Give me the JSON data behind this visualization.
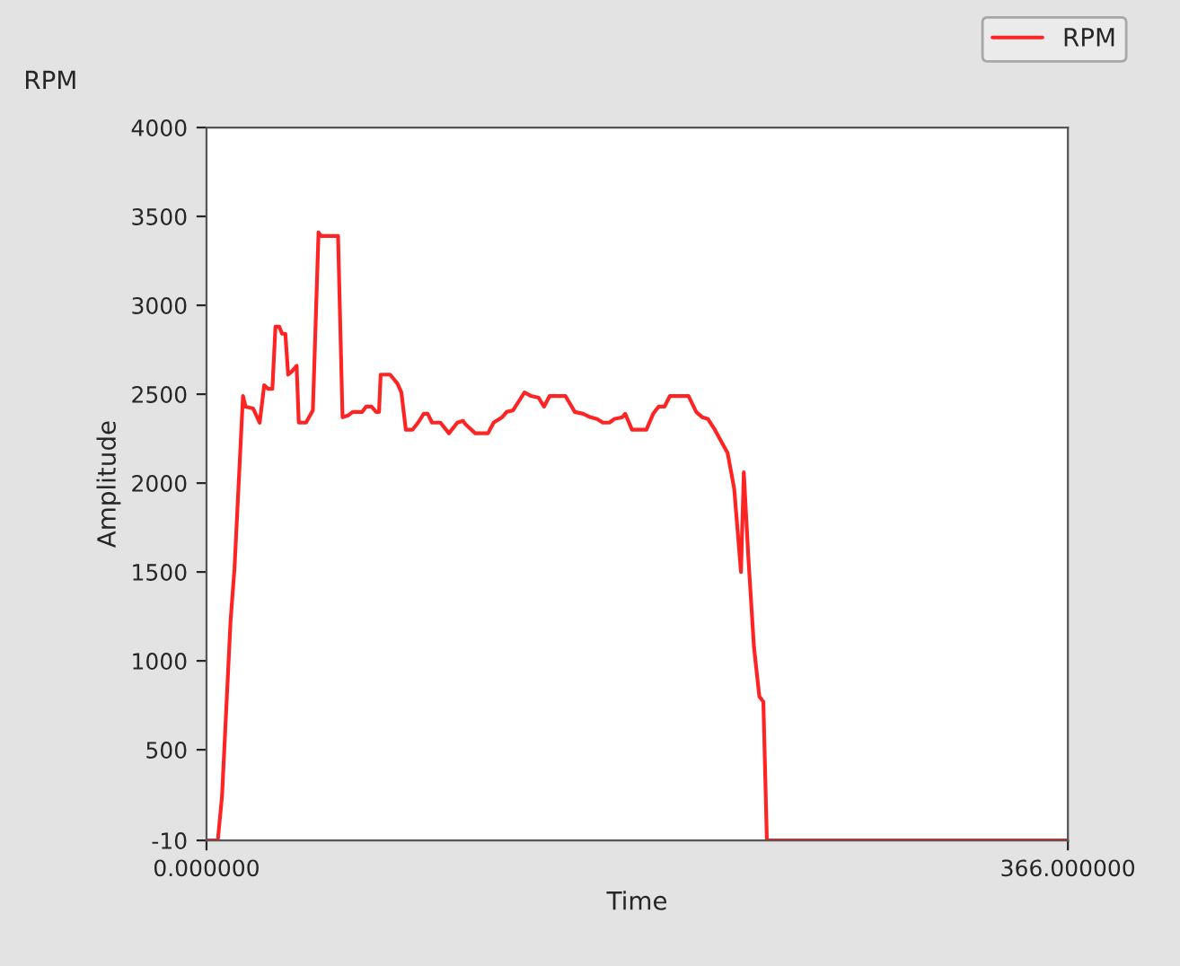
{
  "chart_data": {
    "type": "line",
    "title": "RPM",
    "xlabel": "Time",
    "ylabel": "Amplitude",
    "xlim": [
      0,
      366
    ],
    "xticks": [
      {
        "value": 0,
        "label": "0.000000"
      },
      {
        "value": 366,
        "label": "366.000000"
      }
    ],
    "ylim": [
      -10,
      4000
    ],
    "yticks": [
      -10,
      500,
      1000,
      1500,
      2000,
      2500,
      3000,
      3500,
      4000
    ],
    "grid": false,
    "legend": "top right",
    "marker": "none",
    "line_style": "solid",
    "series": [
      {
        "name": "RPM",
        "color": "#ff2424",
        "x": [
          0,
          4.8,
          6.6,
          10.2,
          11.9,
          15.5,
          16.6,
          19.8,
          22.6,
          24.5,
          26.2,
          28.0,
          29.3,
          30.9,
          32.1,
          33.5,
          34.7,
          36.4,
          38.3,
          39.2,
          42.3,
          45.2,
          47.6,
          48.7,
          55.9,
          57.8,
          60.1,
          62.1,
          66.1,
          67.8,
          70.1,
          72.1,
          73.3,
          74.0,
          78.0,
          81.1,
          82.8,
          84.7,
          87.5,
          89.9,
          92.3,
          94.0,
          95.8,
          99.4,
          103.0,
          106.6,
          109.0,
          110.1,
          114.2,
          119.6,
          122.0,
          125.6,
          127.5,
          130.3,
          132.7,
          135.1,
          137.9,
          141.1,
          143.4,
          145.8,
          152.5,
          156.5,
          160.0,
          163.2,
          166.0,
          168.4,
          171.2,
          173.2,
          176.7,
          177.9,
          180.8,
          186.9,
          189.8,
          192.1,
          194.6,
          196.9,
          204.8,
          208.1,
          210.7,
          213.1,
          216.0,
          221.4,
          224.2,
          227.1,
          228.3,
          230.2,
          232.6,
          234.9,
          236.6,
          238.1,
          366
        ],
        "values": [
          -10,
          -10,
          240,
          1220,
          1520,
          2490,
          2430,
          2420,
          2340,
          2550,
          2530,
          2530,
          2880,
          2880,
          2840,
          2840,
          2610,
          2630,
          2660,
          2340,
          2340,
          2410,
          3410,
          3390,
          3390,
          2370,
          2380,
          2400,
          2400,
          2430,
          2430,
          2400,
          2400,
          2610,
          2610,
          2560,
          2510,
          2300,
          2300,
          2340,
          2390,
          2390,
          2340,
          2340,
          2280,
          2340,
          2350,
          2330,
          2280,
          2280,
          2340,
          2370,
          2400,
          2410,
          2460,
          2510,
          2490,
          2480,
          2430,
          2490,
          2490,
          2400,
          2390,
          2370,
          2360,
          2340,
          2340,
          2360,
          2370,
          2390,
          2300,
          2300,
          2390,
          2430,
          2430,
          2490,
          2490,
          2400,
          2370,
          2360,
          2300,
          2170,
          1970,
          1500,
          2060,
          1590,
          1080,
          800,
          770,
          -10,
          -10
        ]
      }
    ]
  }
}
